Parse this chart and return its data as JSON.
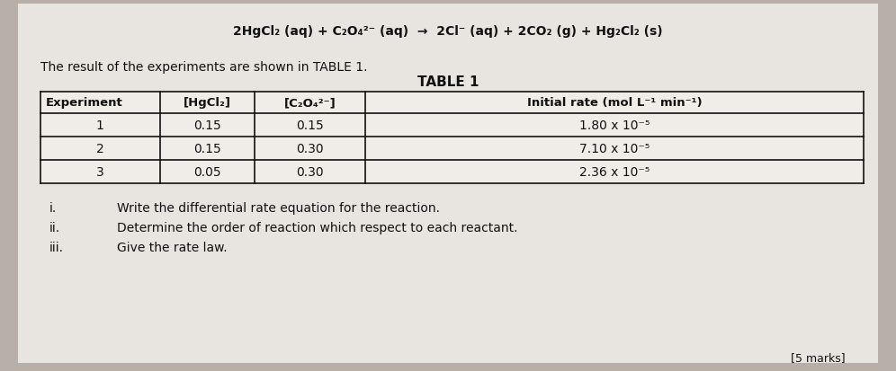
{
  "background_color": "#b8b0a8",
  "content_bg": "#e8e4e0",
  "equation_line": "2HgCl₂ (aq) + C₂O₄²⁻ (aq)  →  2Cl⁻ (aq) + 2CO₂ (g) + Hg₂Cl₂ (s)",
  "intro_text": "The result of the experiments are shown in TABLE 1.",
  "table_title": "TABLE 1",
  "col_headers": [
    "Experiment",
    "[HgCl₂]",
    "[C₂O₄²⁻]",
    "Initial rate (mol L⁻¹ min⁻¹)"
  ],
  "table_data": [
    [
      "1",
      "0.15",
      "0.15",
      "1.80 x 10⁻⁵"
    ],
    [
      "2",
      "0.15",
      "0.30",
      "7.10 x 10⁻⁵"
    ],
    [
      "3",
      "0.05",
      "0.30",
      "2.36 x 10⁻⁵"
    ]
  ],
  "questions": [
    [
      "i.",
      "Write the differential rate equation for the reaction."
    ],
    [
      "ii.",
      "Determine the order of reaction which respect to each reactant."
    ],
    [
      "iii.",
      "Give the rate law."
    ]
  ],
  "text_color": "#111111",
  "table_border_color": "#111111",
  "font_size_equation": 10,
  "font_size_intro": 10,
  "font_size_table_title": 11,
  "font_size_table_header": 9.5,
  "font_size_table_data": 10,
  "font_size_questions": 10,
  "marks_text": "[5 marks]"
}
